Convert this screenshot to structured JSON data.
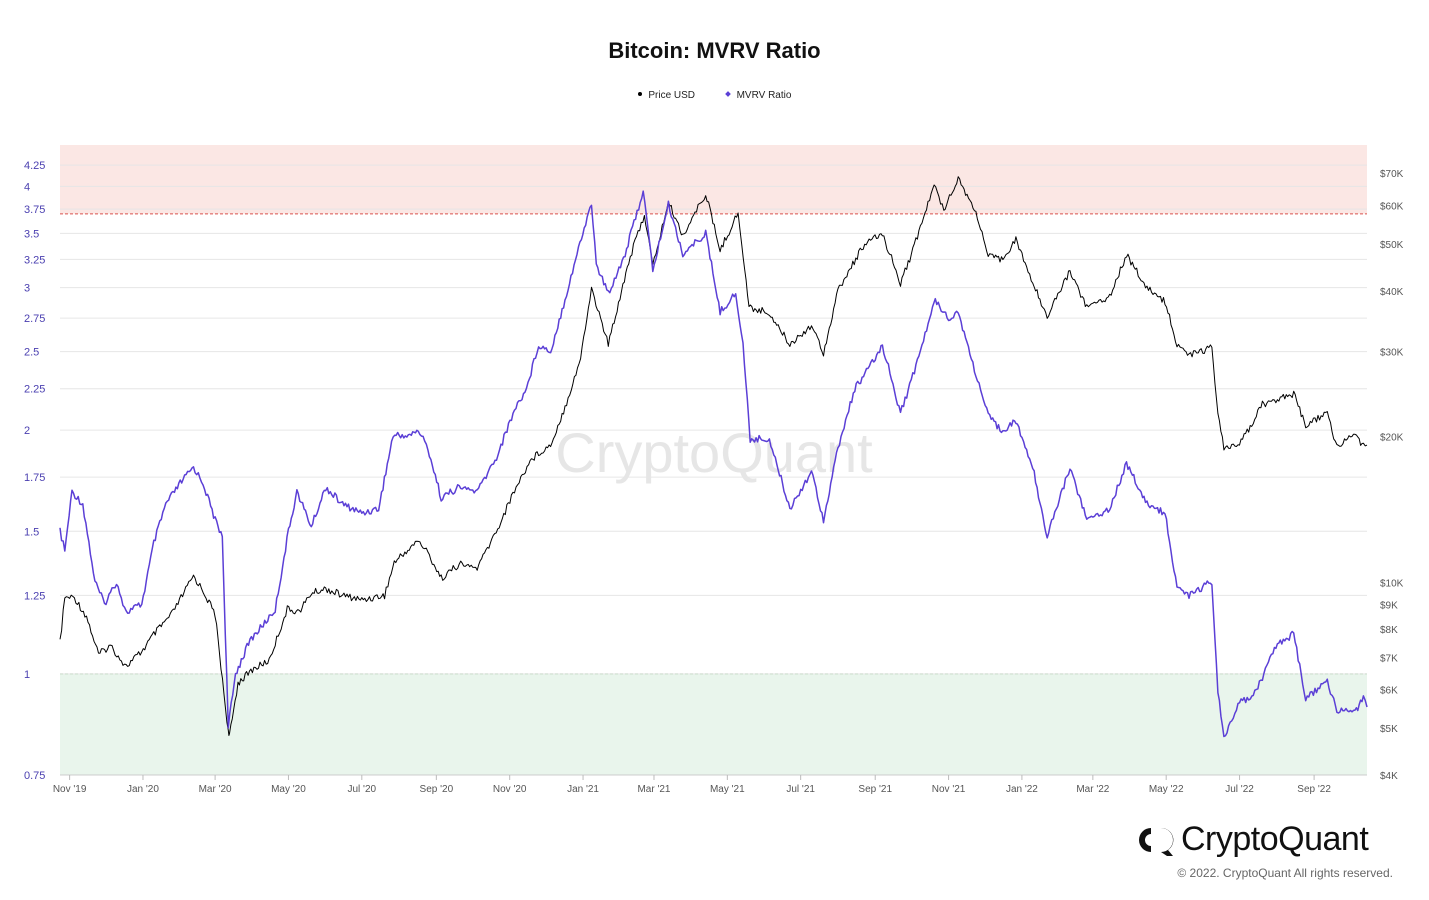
{
  "legend": [
    {
      "label": "Price USD",
      "color": "#000000"
    },
    {
      "label": "MVRV Ratio",
      "color": "#5b3fd6"
    }
  ],
  "brand": {
    "name": "CryptoQuant",
    "watermark": "CryptoQuant",
    "copyright": "© 2022. CryptoQuant All rights reserved."
  },
  "chart_data": {
    "type": "line",
    "title": "Bitcoin: MVRV Ratio",
    "x_range": [
      "2019-10-24",
      "2022-10-15"
    ],
    "x_ticks": [
      "Nov '19",
      "Jan '20",
      "Mar '20",
      "May '20",
      "Jul '20",
      "Sep '20",
      "Nov '20",
      "Jan '21",
      "Mar '21",
      "May '21",
      "Jul '21",
      "Sep '21",
      "Nov '21",
      "Jan '22",
      "Mar '22",
      "May '22",
      "Jul '22",
      "Sep '22"
    ],
    "y_left": {
      "label": "",
      "scale": "log",
      "range": [
        0.75,
        4.5
      ],
      "ticks": [
        "0.75",
        "1",
        "1.25",
        "1.5",
        "1.75",
        "2",
        "2.25",
        "2.5",
        "2.75",
        "3",
        "3.25",
        "3.5",
        "3.75",
        "4",
        "4.25"
      ]
    },
    "y_right": {
      "label": "",
      "scale": "log",
      "range": [
        4000,
        80000
      ],
      "ticks": [
        "$4K",
        "$5K",
        "$6K",
        "$7K",
        "$8K",
        "$9K",
        "$10K",
        "$20K",
        "$30K",
        "$40K",
        "$50K",
        "$60K",
        "$70K"
      ]
    },
    "bands": [
      {
        "name": "overvalued",
        "from": 3.7,
        "to": 4.5,
        "color": "#fbe7e4",
        "line_color": "#d9534f"
      },
      {
        "name": "undervalued",
        "from": 0.75,
        "to": 1.0,
        "color": "#e9f5ec",
        "line_color": "#5cb85c"
      }
    ],
    "grid": true,
    "legend_position": "top-center",
    "series": [
      {
        "name": "MVRV Ratio",
        "axis": "left",
        "color": "#5b3fd6",
        "points": [
          [
            "2019-10-24",
            1.5
          ],
          [
            "2019-10-28",
            1.42
          ],
          [
            "2019-11-03",
            1.68
          ],
          [
            "2019-11-12",
            1.62
          ],
          [
            "2019-11-22",
            1.3
          ],
          [
            "2019-11-30",
            1.22
          ],
          [
            "2019-12-10",
            1.3
          ],
          [
            "2019-12-18",
            1.19
          ],
          [
            "2019-12-31",
            1.22
          ],
          [
            "2020-01-10",
            1.45
          ],
          [
            "2020-01-20",
            1.62
          ],
          [
            "2020-02-01",
            1.72
          ],
          [
            "2020-02-12",
            1.8
          ],
          [
            "2020-02-20",
            1.72
          ],
          [
            "2020-03-01",
            1.55
          ],
          [
            "2020-03-07",
            1.48
          ],
          [
            "2020-03-12",
            0.86
          ],
          [
            "2020-03-18",
            1.0
          ],
          [
            "2020-03-30",
            1.1
          ],
          [
            "2020-04-10",
            1.15
          ],
          [
            "2020-04-20",
            1.2
          ],
          [
            "2020-05-01",
            1.5
          ],
          [
            "2020-05-08",
            1.68
          ],
          [
            "2020-05-20",
            1.52
          ],
          [
            "2020-06-01",
            1.7
          ],
          [
            "2020-06-15",
            1.62
          ],
          [
            "2020-07-01",
            1.58
          ],
          [
            "2020-07-15",
            1.6
          ],
          [
            "2020-07-27",
            1.97
          ],
          [
            "2020-08-10",
            1.97
          ],
          [
            "2020-08-17",
            2.0
          ],
          [
            "2020-08-25",
            1.9
          ],
          [
            "2020-09-05",
            1.65
          ],
          [
            "2020-09-20",
            1.7
          ],
          [
            "2020-10-05",
            1.68
          ],
          [
            "2020-10-21",
            1.85
          ],
          [
            "2020-11-05",
            2.12
          ],
          [
            "2020-11-15",
            2.25
          ],
          [
            "2020-11-25",
            2.55
          ],
          [
            "2020-12-05",
            2.5
          ],
          [
            "2020-12-17",
            2.9
          ],
          [
            "2020-12-27",
            3.3
          ],
          [
            "2021-01-08",
            3.82
          ],
          [
            "2021-01-12",
            3.2
          ],
          [
            "2021-01-22",
            2.95
          ],
          [
            "2021-02-05",
            3.3
          ],
          [
            "2021-02-20",
            3.95
          ],
          [
            "2021-02-28",
            3.15
          ],
          [
            "2021-03-13",
            3.8
          ],
          [
            "2021-03-25",
            3.3
          ],
          [
            "2021-04-13",
            3.5
          ],
          [
            "2021-04-25",
            2.8
          ],
          [
            "2021-05-08",
            2.95
          ],
          [
            "2021-05-14",
            2.55
          ],
          [
            "2021-05-20",
            1.95
          ],
          [
            "2021-06-05",
            1.95
          ],
          [
            "2021-06-22",
            1.6
          ],
          [
            "2021-07-10",
            1.78
          ],
          [
            "2021-07-20",
            1.55
          ],
          [
            "2021-08-01",
            1.9
          ],
          [
            "2021-08-15",
            2.25
          ],
          [
            "2021-09-01",
            2.45
          ],
          [
            "2021-09-07",
            2.55
          ],
          [
            "2021-09-22",
            2.1
          ],
          [
            "2021-10-01",
            2.3
          ],
          [
            "2021-10-15",
            2.7
          ],
          [
            "2021-10-21",
            2.9
          ],
          [
            "2021-11-01",
            2.75
          ],
          [
            "2021-11-09",
            2.8
          ],
          [
            "2021-11-20",
            2.45
          ],
          [
            "2021-12-04",
            2.08
          ],
          [
            "2021-12-15",
            2.0
          ],
          [
            "2021-12-27",
            2.05
          ],
          [
            "2022-01-10",
            1.8
          ],
          [
            "2022-01-22",
            1.48
          ],
          [
            "2022-02-10",
            1.8
          ],
          [
            "2022-02-24",
            1.55
          ],
          [
            "2022-03-15",
            1.6
          ],
          [
            "2022-03-29",
            1.82
          ],
          [
            "2022-04-15",
            1.62
          ],
          [
            "2022-04-30",
            1.58
          ],
          [
            "2022-05-10",
            1.28
          ],
          [
            "2022-05-20",
            1.25
          ],
          [
            "2022-06-08",
            1.3
          ],
          [
            "2022-06-13",
            0.95
          ],
          [
            "2022-06-18",
            0.83
          ],
          [
            "2022-07-01",
            0.92
          ],
          [
            "2022-07-15",
            0.95
          ],
          [
            "2022-07-30",
            1.08
          ],
          [
            "2022-08-15",
            1.12
          ],
          [
            "2022-08-25",
            0.93
          ],
          [
            "2022-09-12",
            0.98
          ],
          [
            "2022-09-20",
            0.9
          ],
          [
            "2022-10-05",
            0.9
          ],
          [
            "2022-10-12",
            0.93
          ],
          [
            "2022-10-15",
            0.91
          ]
        ]
      },
      {
        "name": "Price USD",
        "axis": "right",
        "color": "#000000",
        "points": [
          [
            "2019-10-24",
            7500
          ],
          [
            "2019-10-28",
            9300
          ],
          [
            "2019-11-05",
            9300
          ],
          [
            "2019-11-15",
            8500
          ],
          [
            "2019-11-25",
            7100
          ],
          [
            "2019-12-05",
            7400
          ],
          [
            "2019-12-18",
            6700
          ],
          [
            "2019-12-31",
            7200
          ],
          [
            "2020-01-10",
            7800
          ],
          [
            "2020-01-25",
            8600
          ],
          [
            "2020-02-12",
            10300
          ],
          [
            "2020-02-20",
            9600
          ],
          [
            "2020-03-01",
            8600
          ],
          [
            "2020-03-12",
            4900
          ],
          [
            "2020-03-13",
            4800
          ],
          [
            "2020-03-20",
            6200
          ],
          [
            "2020-04-01",
            6600
          ],
          [
            "2020-04-15",
            6900
          ],
          [
            "2020-04-30",
            8800
          ],
          [
            "2020-05-10",
            8700
          ],
          [
            "2020-05-20",
            9500
          ],
          [
            "2020-06-01",
            9700
          ],
          [
            "2020-06-15",
            9400
          ],
          [
            "2020-07-01",
            9200
          ],
          [
            "2020-07-20",
            9400
          ],
          [
            "2020-07-28",
            11000
          ],
          [
            "2020-08-17",
            12200
          ],
          [
            "2020-08-25",
            11500
          ],
          [
            "2020-09-05",
            10200
          ],
          [
            "2020-09-20",
            10900
          ],
          [
            "2020-10-05",
            10700
          ],
          [
            "2020-10-22",
            12900
          ],
          [
            "2020-11-05",
            15500
          ],
          [
            "2020-11-18",
            17800
          ],
          [
            "2020-11-25",
            18500
          ],
          [
            "2020-12-05",
            19200
          ],
          [
            "2020-12-17",
            23000
          ],
          [
            "2020-12-30",
            29000
          ],
          [
            "2021-01-08",
            40500
          ],
          [
            "2021-01-22",
            31000
          ],
          [
            "2021-02-08",
            46000
          ],
          [
            "2021-02-21",
            57500
          ],
          [
            "2021-02-28",
            45000
          ],
          [
            "2021-03-13",
            61000
          ],
          [
            "2021-03-25",
            52000
          ],
          [
            "2021-04-13",
            63500
          ],
          [
            "2021-04-25",
            48500
          ],
          [
            "2021-05-10",
            58000
          ],
          [
            "2021-05-13",
            50000
          ],
          [
            "2021-05-19",
            37000
          ],
          [
            "2021-06-05",
            36000
          ],
          [
            "2021-06-22",
            31000
          ],
          [
            "2021-07-10",
            34000
          ],
          [
            "2021-07-20",
            29800
          ],
          [
            "2021-08-01",
            40000
          ],
          [
            "2021-08-22",
            49500
          ],
          [
            "2021-09-07",
            52500
          ],
          [
            "2021-09-22",
            41500
          ],
          [
            "2021-10-01",
            47500
          ],
          [
            "2021-10-20",
            66000
          ],
          [
            "2021-10-28",
            59000
          ],
          [
            "2021-11-09",
            68500
          ],
          [
            "2021-11-25",
            57000
          ],
          [
            "2021-12-04",
            47000
          ],
          [
            "2021-12-15",
            46500
          ],
          [
            "2021-12-27",
            51000
          ],
          [
            "2022-01-10",
            41500
          ],
          [
            "2022-01-22",
            35500
          ],
          [
            "2022-02-10",
            44000
          ],
          [
            "2022-02-24",
            37000
          ],
          [
            "2022-03-15",
            39000
          ],
          [
            "2022-03-29",
            47500
          ],
          [
            "2022-04-15",
            40500
          ],
          [
            "2022-04-30",
            38000
          ],
          [
            "2022-05-10",
            31000
          ],
          [
            "2022-05-20",
            29500
          ],
          [
            "2022-06-08",
            30500
          ],
          [
            "2022-06-13",
            22500
          ],
          [
            "2022-06-18",
            18800
          ],
          [
            "2022-07-01",
            19200
          ],
          [
            "2022-07-20",
            23300
          ],
          [
            "2022-07-30",
            23800
          ],
          [
            "2022-08-15",
            24500
          ],
          [
            "2022-08-25",
            21000
          ],
          [
            "2022-09-12",
            22400
          ],
          [
            "2022-09-20",
            19000
          ],
          [
            "2022-10-05",
            20300
          ],
          [
            "2022-10-12",
            19100
          ],
          [
            "2022-10-15",
            19200
          ]
        ]
      }
    ]
  }
}
